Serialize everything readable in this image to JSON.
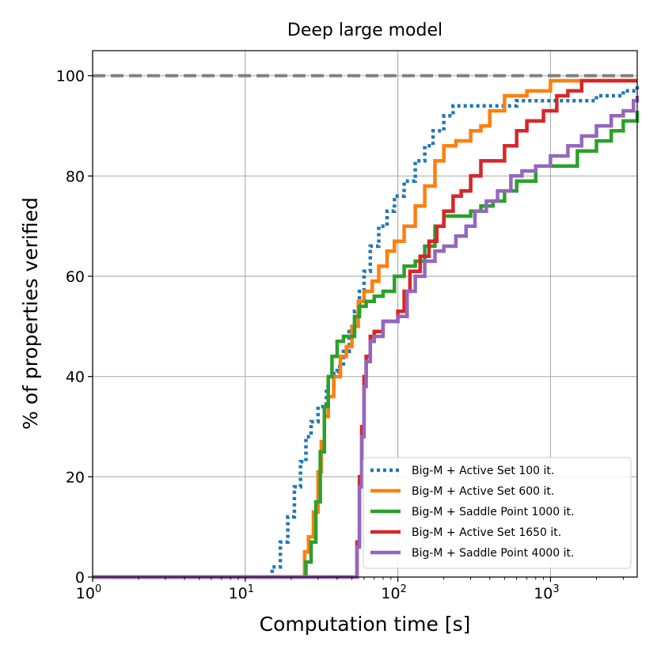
{
  "chart_data": {
    "type": "line",
    "title": "Deep large model",
    "xlabel": "Computation time [s]",
    "ylabel": "% of properties verified",
    "xscale": "log",
    "xlim": [
      1,
      3700
    ],
    "ylim": [
      0,
      105
    ],
    "grid": true,
    "x_ticks": [
      {
        "value": 1,
        "base": "10",
        "exp": "0"
      },
      {
        "value": 10,
        "base": "10",
        "exp": "1"
      },
      {
        "value": 100,
        "base": "10",
        "exp": "2"
      },
      {
        "value": 1000,
        "base": "10",
        "exp": "3"
      }
    ],
    "y_ticks": [
      {
        "value": 0,
        "label": "0"
      },
      {
        "value": 20,
        "label": "20"
      },
      {
        "value": 40,
        "label": "40"
      },
      {
        "value": 60,
        "label": "60"
      },
      {
        "value": 80,
        "label": "80"
      },
      {
        "value": 100,
        "label": "100"
      }
    ],
    "reference_line": {
      "y": 100,
      "color": "#808080",
      "style": "dashed"
    },
    "legend_position": "lower-right",
    "series": [
      {
        "name": "Big-M + Active Set 100 it.",
        "color": "#1f77b4",
        "style": "dotted",
        "x": [
          1,
          14.5,
          15,
          17,
          19,
          21,
          23,
          25,
          27,
          30,
          34,
          38,
          40,
          44,
          48,
          52,
          56,
          60,
          66,
          75,
          85,
          95,
          110,
          130,
          150,
          170,
          200,
          230,
          300,
          400,
          600,
          1000,
          2000,
          3000,
          3700
        ],
        "y": [
          0,
          0,
          2,
          7,
          12,
          18,
          23,
          28,
          31,
          34,
          38,
          41,
          42,
          45,
          49,
          53,
          57,
          61,
          66,
          70,
          73,
          76,
          79,
          83,
          86,
          89,
          92,
          94,
          94,
          94,
          95,
          95,
          96,
          97,
          98
        ]
      },
      {
        "name": "Big-M + Active Set 600 it.",
        "color": "#ff7f0e",
        "style": "solid",
        "x": [
          1,
          24,
          24.5,
          26,
          28,
          30,
          31.5,
          33,
          35,
          38,
          42,
          46,
          50,
          55,
          60,
          68,
          75,
          85,
          95,
          110,
          130,
          150,
          175,
          200,
          240,
          300,
          350,
          400,
          500,
          700,
          1000,
          1500,
          3700
        ],
        "y": [
          0,
          0,
          5,
          8,
          13,
          21,
          27,
          32,
          36,
          40,
          44,
          46,
          50,
          55,
          57,
          59,
          62,
          65,
          67,
          70,
          74,
          78,
          83,
          86,
          87,
          89,
          90,
          93,
          96,
          97,
          99,
          99,
          99
        ]
      },
      {
        "name": "Big-M + Saddle Point 1000 it.",
        "color": "#2ca02c",
        "style": "solid",
        "x": [
          1,
          24.5,
          25,
          27,
          29,
          31,
          33,
          35,
          37,
          40,
          44,
          48,
          52,
          56,
          62,
          70,
          80,
          95,
          110,
          130,
          150,
          175,
          200,
          250,
          300,
          350,
          420,
          500,
          600,
          800,
          1000,
          1500,
          2000,
          2500,
          3000,
          3700
        ],
        "y": [
          0,
          0,
          3,
          7,
          15,
          25,
          34,
          40,
          44,
          47,
          48,
          48,
          52,
          54,
          55,
          56,
          57,
          60,
          62,
          63,
          66,
          70,
          72,
          72,
          73,
          74,
          75,
          77,
          79,
          82,
          82,
          85,
          87,
          89,
          91,
          93
        ]
      },
      {
        "name": "Big-M + Active Set 1650 it.",
        "color": "#d62728",
        "style": "solid",
        "x": [
          1,
          52,
          54,
          56,
          58,
          60,
          62,
          66,
          70,
          80,
          100,
          110,
          120,
          140,
          160,
          180,
          200,
          230,
          260,
          300,
          350,
          400,
          500,
          600,
          700,
          900,
          1100,
          1300,
          1600,
          2000,
          3700
        ],
        "y": [
          0,
          0,
          7,
          20,
          30,
          40,
          44,
          48,
          49,
          51,
          53,
          57,
          61,
          64,
          67,
          70,
          73,
          76,
          77,
          80,
          83,
          83,
          86,
          89,
          91,
          93,
          96,
          97,
          99,
          99,
          99
        ]
      },
      {
        "name": "Big-M + Saddle Point 4000 it.",
        "color": "#9467bd",
        "style": "solid",
        "x": [
          1,
          52,
          54,
          56,
          58,
          60,
          62,
          66,
          70,
          80,
          100,
          115,
          130,
          150,
          175,
          200,
          240,
          280,
          320,
          380,
          450,
          550,
          650,
          800,
          1000,
          1300,
          1600,
          2000,
          2500,
          3000,
          3500,
          3700
        ],
        "y": [
          0,
          0,
          6,
          18,
          28,
          38,
          43,
          47,
          48,
          51,
          52,
          57,
          60,
          63,
          65,
          66,
          68,
          70,
          73,
          75,
          77,
          80,
          81,
          82,
          84,
          86,
          88,
          90,
          92,
          93,
          95,
          96
        ]
      }
    ]
  }
}
